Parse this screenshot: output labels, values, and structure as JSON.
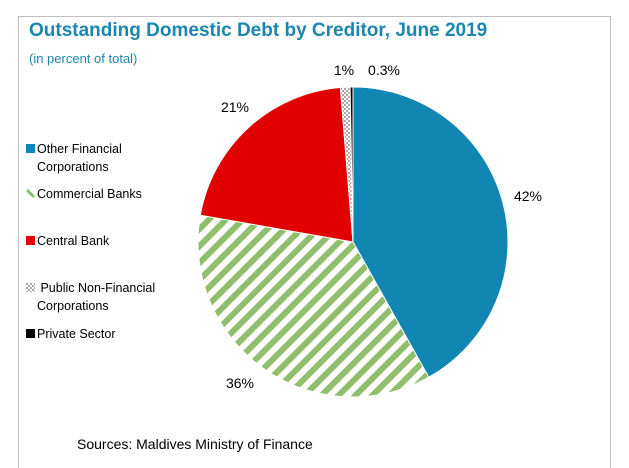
{
  "chart_data": {
    "type": "pie",
    "title": "Outstanding Domestic Debt by Creditor, June 2019",
    "subtitle": "(in percent of total)",
    "slices": [
      {
        "label": "Other Financial Corporations",
        "value": 42,
        "display": "42%",
        "color": "#1286b2",
        "pattern": "solid"
      },
      {
        "label": "Commercial Banks",
        "value": 36,
        "display": "36%",
        "color": "#8fbe6c",
        "pattern": "diagonal-stripes"
      },
      {
        "label": "Central Bank",
        "value": 21,
        "display": "21%",
        "color": "#e00000",
        "pattern": "solid"
      },
      {
        "label": "Public Non-Financial Corporations",
        "value": 1,
        "display": "1%",
        "color": "#c0c0c0",
        "pattern": "checker"
      },
      {
        "label": "Private Sector",
        "value": 0.3,
        "display": "0.3%",
        "color": "#000000",
        "pattern": "solid"
      }
    ],
    "legend_position": "left"
  },
  "legend": {
    "items": [
      {
        "line1": "Other Financial",
        "line2": "Corporations"
      },
      {
        "line1": "Commercial Banks",
        "line2": ""
      },
      {
        "line1": "Central Bank",
        "line2": ""
      },
      {
        "line1": " Public Non-Financial",
        "line2": "Corporations"
      },
      {
        "line1": "Private Sector",
        "line2": ""
      }
    ]
  },
  "source": "Sources: Maldives Ministry of Finance"
}
